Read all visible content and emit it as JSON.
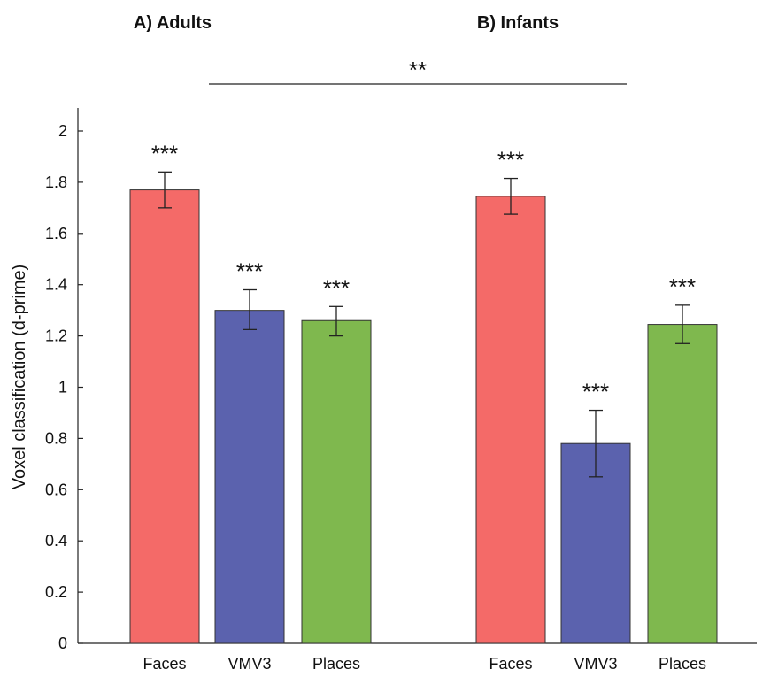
{
  "chart_data": {
    "type": "bar",
    "ylabel": "Voxel classification (d-prime)",
    "ylim": [
      0,
      2.1
    ],
    "yticks": [
      "0",
      "0.2",
      "0.4",
      "0.6",
      "0.8",
      "1",
      "1.2",
      "1.4",
      "1.6",
      "1.8",
      "2"
    ],
    "groups": [
      {
        "title": "A) Adults",
        "bars": [
          {
            "category": "Faces",
            "value": 1.77,
            "error": [
              1.7,
              1.84
            ],
            "sig": "***",
            "color": "#f46a68"
          },
          {
            "category": "VMV3",
            "value": 1.3,
            "error": [
              1.225,
              1.38
            ],
            "sig": "***",
            "color": "#5b62ae"
          },
          {
            "category": "Places",
            "value": 1.26,
            "error": [
              1.2,
              1.315
            ],
            "sig": "***",
            "color": "#7fb84e"
          }
        ]
      },
      {
        "title": "B) Infants",
        "bars": [
          {
            "category": "Faces",
            "value": 1.745,
            "error": [
              1.675,
              1.815
            ],
            "sig": "***",
            "color": "#f46a68"
          },
          {
            "category": "VMV3",
            "value": 0.78,
            "error": [
              0.65,
              0.91
            ],
            "sig": "***",
            "color": "#5b62ae"
          },
          {
            "category": "Places",
            "value": 1.245,
            "error": [
              1.17,
              1.32
            ],
            "sig": "***",
            "color": "#7fb84e"
          }
        ]
      }
    ],
    "comparison": {
      "label": "**"
    }
  }
}
